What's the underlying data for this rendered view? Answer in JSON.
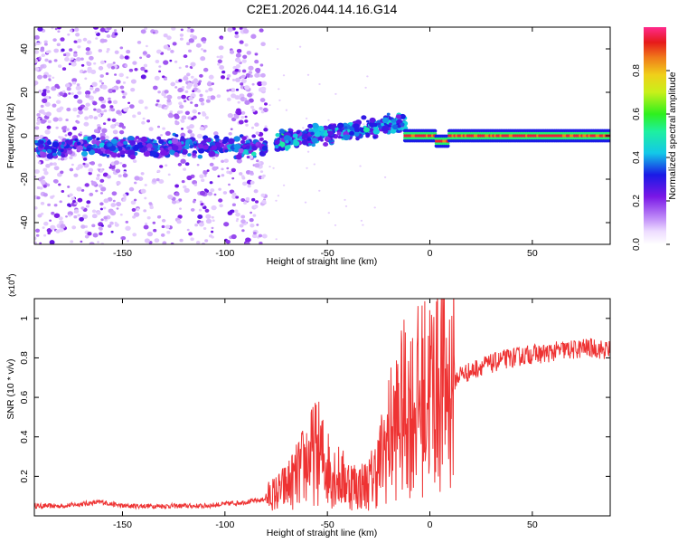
{
  "title": "C2E1.2026.044.14.16.G14",
  "colors": {
    "line": "#ee3333",
    "axis": "#000000",
    "background": "#ffffff"
  },
  "chart_data": [
    {
      "type": "heatmap",
      "xlabel": "Height of straight line (km)",
      "ylabel": "Frequency (Hz)",
      "xlim": [
        -193,
        88
      ],
      "ylim": [
        -50,
        50
      ],
      "x_ticks": [
        -150,
        -100,
        -50,
        0,
        50
      ],
      "y_ticks": [
        -40,
        -20,
        0,
        20,
        40
      ],
      "colorbar": {
        "label": "Normalized spectral amplitude",
        "range": [
          0,
          1
        ],
        "ticks": [
          0.0,
          0.2,
          0.4,
          0.6,
          0.8
        ]
      },
      "features": [
        {
          "x_range": [
            -193,
            -80
          ],
          "freq_center": -5,
          "amplitude": 0.3,
          "note": "noisy band with scattered speckle"
        },
        {
          "x_range": [
            -75,
            -12
          ],
          "freq_center_start": -2,
          "freq_center_end": 6,
          "amplitude": 0.35
        },
        {
          "x_range": [
            -12,
            88
          ],
          "freq_center": 0,
          "amplitude": 0.95,
          "note": "narrow strong line"
        }
      ]
    },
    {
      "type": "line",
      "xlabel": "Height of straight line (km)",
      "ylabel": "SNR (10 * v/v)",
      "y_multiplier": "(x10",
      "y_exponent": "4",
      "xlim": [
        -193,
        88
      ],
      "ylim": [
        0,
        1.1
      ],
      "x_ticks": [
        -150,
        -100,
        -50,
        0,
        50
      ],
      "y_ticks": [
        0.2,
        0.4,
        0.6,
        0.8,
        1.0
      ],
      "series": [
        {
          "name": "SNR",
          "x": [
            -193,
            -180,
            -170,
            -160,
            -150,
            -140,
            -130,
            -120,
            -110,
            -100,
            -90,
            -82,
            -78,
            -74,
            -70,
            -65,
            -60,
            -55,
            -50,
            -45,
            -40,
            -35,
            -30,
            -25,
            -20,
            -17,
            -15,
            -12,
            -10,
            -8,
            -6,
            -4,
            -2,
            0,
            2,
            4,
            6,
            8,
            10,
            15,
            20,
            25,
            30,
            35,
            40,
            45,
            50,
            55,
            60,
            65,
            70,
            75,
            80,
            85,
            88
          ],
          "values": [
            0.05,
            0.05,
            0.06,
            0.07,
            0.05,
            0.05,
            0.05,
            0.05,
            0.05,
            0.06,
            0.07,
            0.08,
            0.1,
            0.12,
            0.15,
            0.2,
            0.28,
            0.33,
            0.25,
            0.2,
            0.17,
            0.15,
            0.16,
            0.25,
            0.4,
            0.45,
            0.5,
            0.55,
            0.55,
            0.55,
            0.58,
            0.6,
            0.62,
            0.64,
            0.65,
            0.68,
            0.68,
            0.65,
            0.66,
            0.72,
            0.73,
            0.76,
            0.77,
            0.79,
            0.8,
            0.81,
            0.82,
            0.82,
            0.83,
            0.84,
            0.84,
            0.85,
            0.85,
            0.84,
            0.84
          ]
        }
      ]
    }
  ]
}
